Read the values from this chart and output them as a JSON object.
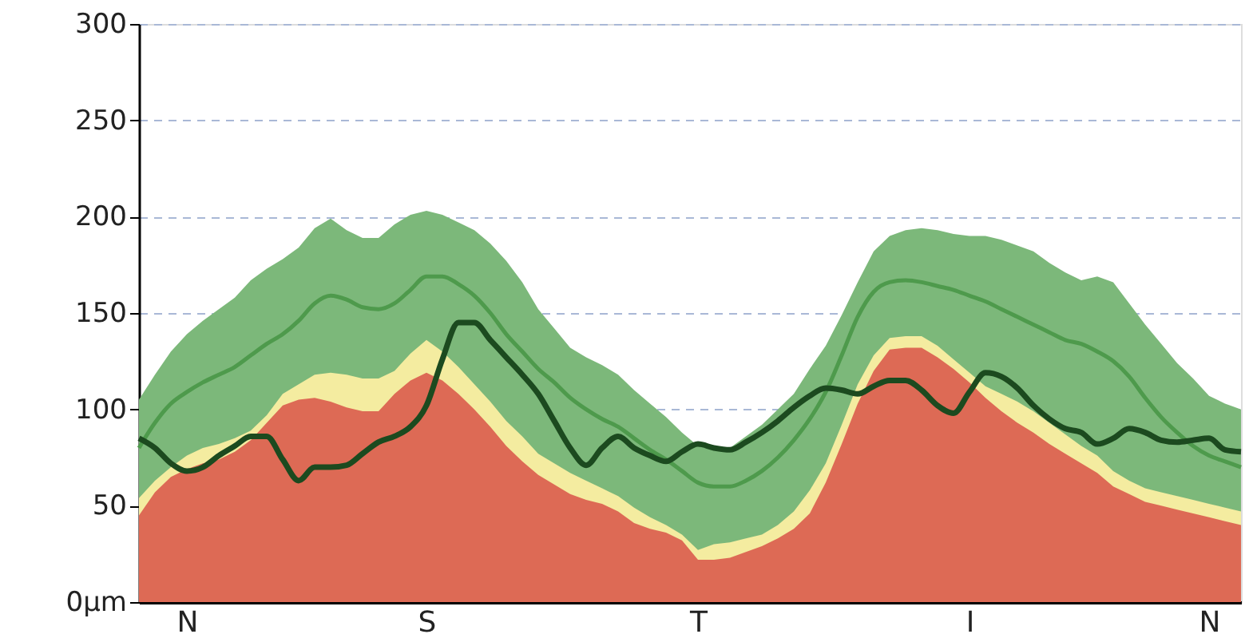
{
  "chart_data": {
    "type": "line",
    "categories": [
      null,
      null,
      null,
      "N",
      null,
      null,
      null,
      null,
      null,
      null,
      null,
      null,
      null,
      null,
      null,
      null,
      null,
      null,
      "S",
      null,
      null,
      null,
      null,
      null,
      null,
      null,
      null,
      null,
      null,
      null,
      null,
      null,
      null,
      null,
      null,
      "T",
      null,
      null,
      null,
      null,
      null,
      null,
      null,
      null,
      null,
      null,
      null,
      null,
      null,
      null,
      null,
      null,
      "I",
      null,
      null,
      null,
      null,
      null,
      null,
      null,
      null,
      null,
      null,
      null,
      null,
      null,
      null,
      "N",
      null,
      null
    ],
    "series": [
      {
        "type": "area",
        "color": "#7cb87a",
        "values": [
          105,
          118,
          130,
          139,
          146,
          152,
          158,
          167,
          173,
          178,
          184,
          194,
          199,
          193,
          189,
          189,
          196,
          201,
          203,
          201,
          197,
          193,
          186,
          177,
          166,
          152,
          142,
          132,
          127,
          123,
          118,
          110,
          103,
          96,
          88,
          81,
          79,
          80,
          86,
          92,
          100,
          108,
          121,
          133,
          149,
          166,
          182,
          190,
          193,
          194,
          193,
          191,
          190,
          190,
          188,
          185,
          182,
          176,
          171,
          167,
          169,
          166,
          155,
          144,
          134,
          124,
          116,
          107,
          103,
          100
        ]
      },
      {
        "type": "area",
        "color": "#f4eca0",
        "values": [
          54,
          63,
          70,
          76,
          80,
          82,
          85,
          89,
          97,
          108,
          113,
          118,
          119,
          118,
          116,
          116,
          120,
          129,
          136,
          130,
          122,
          113,
          104,
          94,
          86,
          77,
          72,
          67,
          63,
          59,
          55,
          49,
          44,
          40,
          35,
          27,
          30,
          31,
          33,
          35,
          40,
          47,
          58,
          72,
          92,
          113,
          128,
          137,
          138,
          138,
          133,
          126,
          119,
          112,
          108,
          104,
          99,
          93,
          87,
          81,
          76,
          68,
          63,
          59,
          57,
          55,
          53,
          51,
          49,
          47
        ]
      },
      {
        "type": "area",
        "color": "#dd6a55",
        "values": [
          45,
          57,
          65,
          69,
          72,
          74,
          78,
          84,
          93,
          102,
          105,
          106,
          104,
          101,
          99,
          99,
          108,
          115,
          119,
          115,
          108,
          100,
          91,
          81,
          73,
          66,
          61,
          56,
          53,
          51,
          47,
          41,
          38,
          36,
          32,
          22,
          22,
          23,
          26,
          29,
          33,
          38,
          46,
          62,
          82,
          103,
          120,
          131,
          132,
          132,
          127,
          121,
          114,
          106,
          99,
          93,
          88,
          82,
          77,
          72,
          67,
          60,
          56,
          52,
          50,
          48,
          46,
          44,
          42,
          40
        ]
      },
      {
        "color": "#4e9a4c",
        "values": [
          80,
          93,
          103,
          109,
          114,
          118,
          122,
          128,
          134,
          139,
          146,
          155,
          159,
          157,
          153,
          152,
          155,
          162,
          169,
          169,
          165,
          159,
          150,
          139,
          130,
          121,
          114,
          106,
          100,
          95,
          91,
          85,
          79,
          74,
          68,
          62,
          60,
          60,
          63,
          68,
          75,
          84,
          95,
          109,
          128,
          148,
          161,
          166,
          167,
          166,
          164,
          162,
          159,
          156,
          152,
          148,
          144,
          140,
          136,
          134,
          130,
          125,
          117,
          106,
          96,
          88,
          81,
          76,
          73,
          70
        ]
      },
      {
        "color": "#1c4a1f",
        "values": [
          85,
          80,
          72,
          68,
          70,
          76,
          81,
          86,
          86,
          74,
          63,
          70,
          70,
          71,
          77,
          83,
          86,
          91,
          102,
          126,
          145,
          145,
          136,
          127,
          118,
          108,
          94,
          80,
          71,
          80,
          86,
          80,
          76,
          73,
          78,
          82,
          80,
          79,
          83,
          88,
          94,
          101,
          107,
          111,
          110,
          108,
          112,
          115,
          115,
          110,
          102,
          98,
          109,
          119,
          117,
          111,
          102,
          95,
          90,
          88,
          82,
          85,
          90,
          88,
          84,
          83,
          84,
          85,
          79,
          78
        ]
      }
    ],
    "ylim": [
      0,
      300
    ],
    "yticks": [
      {
        "value": 0,
        "label": "0µm"
      },
      50,
      100,
      150,
      200,
      250,
      300
    ],
    "grid": "y",
    "marker": "none",
    "line_style": "solid"
  }
}
